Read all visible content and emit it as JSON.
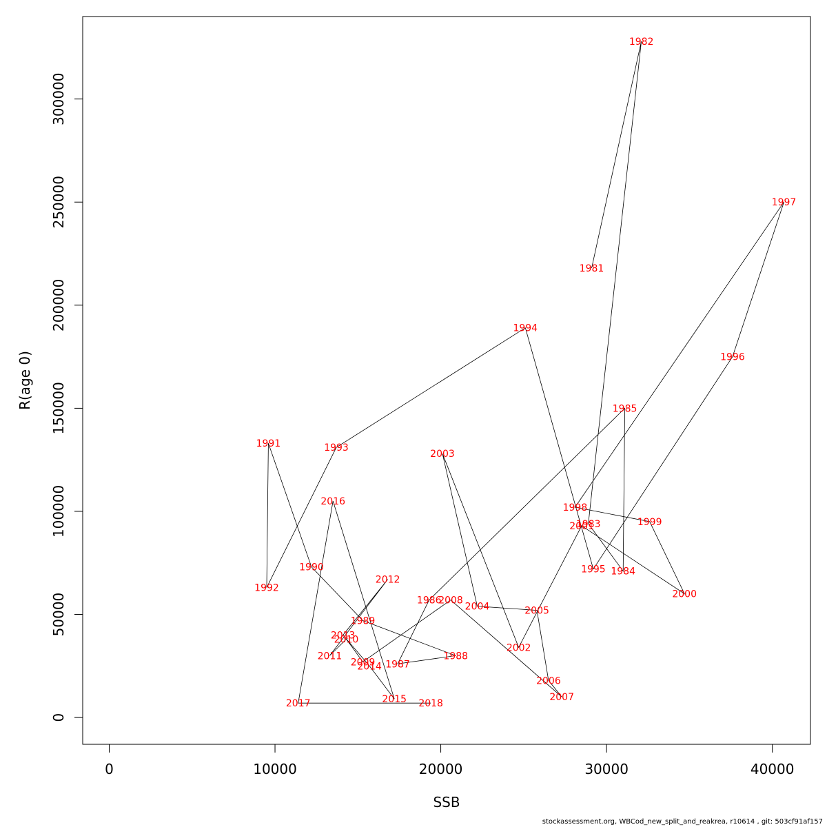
{
  "chart_data": {
    "type": "line",
    "title": "",
    "xlabel": "SSB",
    "ylabel": "R(age 0)",
    "xlim": [
      -1600,
      42300
    ],
    "ylim": [
      -13000,
      340000
    ],
    "xticks": [
      0,
      10000,
      20000,
      30000,
      40000
    ],
    "yticks": [
      0,
      50000,
      100000,
      150000,
      200000,
      250000,
      300000
    ],
    "xtick_labels": [
      "0",
      "10000",
      "20000",
      "30000",
      "40000"
    ],
    "ytick_labels": [
      "0",
      "50000",
      "100000",
      "150000",
      "200000",
      "250000",
      "300000"
    ],
    "grid": false,
    "legend": "none",
    "line_color": "#000000",
    "label_color": "#ff0000",
    "points": [
      {
        "year": "1981",
        "x": 29100,
        "y": 218000
      },
      {
        "year": "1982",
        "x": 32100,
        "y": 328000
      },
      {
        "year": "1983",
        "x": 28900,
        "y": 94000
      },
      {
        "year": "1984",
        "x": 31000,
        "y": 71000
      },
      {
        "year": "1985",
        "x": 31100,
        "y": 150000
      },
      {
        "year": "1986",
        "x": 19300,
        "y": 57000
      },
      {
        "year": "1987",
        "x": 17400,
        "y": 26000
      },
      {
        "year": "1988",
        "x": 20900,
        "y": 30000
      },
      {
        "year": "1989",
        "x": 15300,
        "y": 47000
      },
      {
        "year": "1990",
        "x": 12200,
        "y": 73000
      },
      {
        "year": "1991",
        "x": 9600,
        "y": 133000
      },
      {
        "year": "1992",
        "x": 9500,
        "y": 63000
      },
      {
        "year": "1993",
        "x": 13700,
        "y": 131000
      },
      {
        "year": "1994",
        "x": 25100,
        "y": 189000
      },
      {
        "year": "1995",
        "x": 29200,
        "y": 72000
      },
      {
        "year": "1996",
        "x": 37600,
        "y": 175000
      },
      {
        "year": "1997",
        "x": 40700,
        "y": 250000
      },
      {
        "year": "1998",
        "x": 28100,
        "y": 102000
      },
      {
        "year": "1999",
        "x": 32600,
        "y": 95000
      },
      {
        "year": "2000",
        "x": 34700,
        "y": 60000
      },
      {
        "year": "2001",
        "x": 28500,
        "y": 93000
      },
      {
        "year": "2002",
        "x": 24700,
        "y": 34000
      },
      {
        "year": "2003",
        "x": 20100,
        "y": 128000
      },
      {
        "year": "2004",
        "x": 22200,
        "y": 54000
      },
      {
        "year": "2005",
        "x": 25800,
        "y": 52000
      },
      {
        "year": "2006",
        "x": 26500,
        "y": 18000
      },
      {
        "year": "2007",
        "x": 27300,
        "y": 10000
      },
      {
        "year": "2008",
        "x": 20600,
        "y": 57000
      },
      {
        "year": "2009",
        "x": 15300,
        "y": 27000
      },
      {
        "year": "2010",
        "x": 14300,
        "y": 38000
      },
      {
        "year": "2011",
        "x": 13300,
        "y": 30000
      },
      {
        "year": "2012",
        "x": 16800,
        "y": 67000
      },
      {
        "year": "2013",
        "x": 14100,
        "y": 40000
      },
      {
        "year": "2014",
        "x": 15700,
        "y": 25000
      },
      {
        "year": "2015",
        "x": 17200,
        "y": 9000
      },
      {
        "year": "2016",
        "x": 13500,
        "y": 105000
      },
      {
        "year": "2017",
        "x": 11400,
        "y": 7000
      },
      {
        "year": "2018",
        "x": 19400,
        "y": 7000
      }
    ]
  },
  "footer": {
    "text": "stockassessment.org, WBCod_new_split_and_reakrea, r10614 , git: 503cf91af157"
  }
}
